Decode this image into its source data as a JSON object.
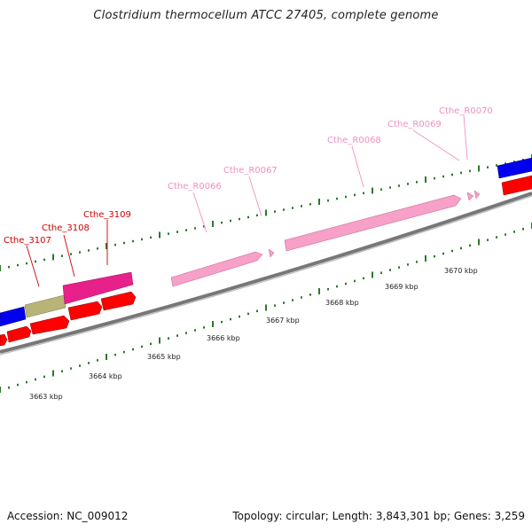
{
  "title": "Clostridium thermocellum ATCC 27405, complete genome",
  "footer": {
    "accession": "Accession: NC_009012",
    "summary": "Topology: circular; Length: 3,843,301 bp; Genes: 3,259"
  },
  "colors": {
    "rna_gene": "#f7a0c8",
    "rna_label": "#f090c0",
    "cds_red": "#ff0000",
    "cds_label": "#d00000",
    "magenta": "#e8208a",
    "olive": "#b8b478",
    "blue": "#0000ee",
    "backbone": "#888888",
    "tick": "#2a7a2a"
  },
  "scale_labels": [
    "3663 kbp",
    "3664 kbp",
    "3665 kbp",
    "3666 kbp",
    "3667 kbp",
    "3668 kbp",
    "3669 kbp",
    "3670 kbp"
  ],
  "features": [
    {
      "label": "Cthe_3107",
      "strand": "forward",
      "type": "cds"
    },
    {
      "label": "Cthe_3108",
      "strand": "forward",
      "type": "cds"
    },
    {
      "label": "Cthe_3109",
      "strand": "forward",
      "type": "cds"
    },
    {
      "label": "Cthe_R0066",
      "strand": "forward",
      "type": "rna"
    },
    {
      "label": "Cthe_R0067",
      "strand": "forward",
      "type": "rna"
    },
    {
      "label": "Cthe_R0068",
      "strand": "forward",
      "type": "rna"
    },
    {
      "label": "Cthe_R0069",
      "strand": "forward",
      "type": "rna"
    },
    {
      "label": "Cthe_R0070",
      "strand": "forward",
      "type": "rna"
    }
  ]
}
